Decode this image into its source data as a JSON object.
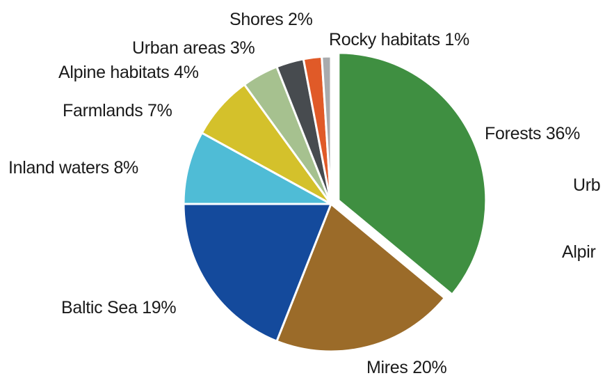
{
  "chart_data": {
    "type": "pie",
    "slices": [
      {
        "label": "Forests 36%",
        "value": 36,
        "color": "#3f8f41"
      },
      {
        "label": "Mires 20%",
        "value": 20,
        "color": "#9b6b29"
      },
      {
        "label": "Baltic Sea 19%",
        "value": 19,
        "color": "#144a9c"
      },
      {
        "label": "Inland waters 8%",
        "value": 8,
        "color": "#4fbcd6"
      },
      {
        "label": "Farmlands 7%",
        "value": 7,
        "color": "#d4c12b"
      },
      {
        "label": "Alpine habitats 4%",
        "value": 4,
        "color": "#a6c18f"
      },
      {
        "label": "Urban areas 3%",
        "value": 3,
        "color": "#474b4f"
      },
      {
        "label": "Shores 2%",
        "value": 2,
        "color": "#e05a28"
      },
      {
        "label": "Rocky habitats 1%",
        "value": 1,
        "color": "#a9abad"
      }
    ],
    "cropped_labels": [
      "Urb",
      "Alpir"
    ]
  }
}
